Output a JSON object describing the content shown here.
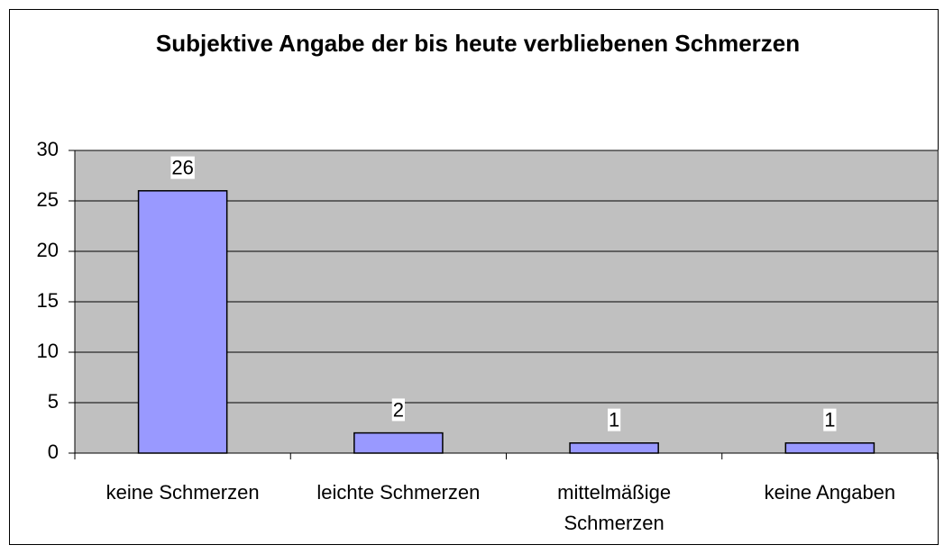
{
  "chart_data": {
    "type": "bar",
    "title": "Subjektive Angabe der bis heute verbliebenen Schmerzen",
    "categories": [
      "keine Schmerzen",
      "leichte Schmerzen",
      "mittelmäßige Schmerzen",
      "keine Angaben"
    ],
    "values": [
      26,
      2,
      1,
      1
    ],
    "color": "#9999ff",
    "ylim": [
      0,
      30
    ],
    "yticks": [
      0,
      5,
      10,
      15,
      20,
      25,
      30
    ],
    "grid": true
  }
}
